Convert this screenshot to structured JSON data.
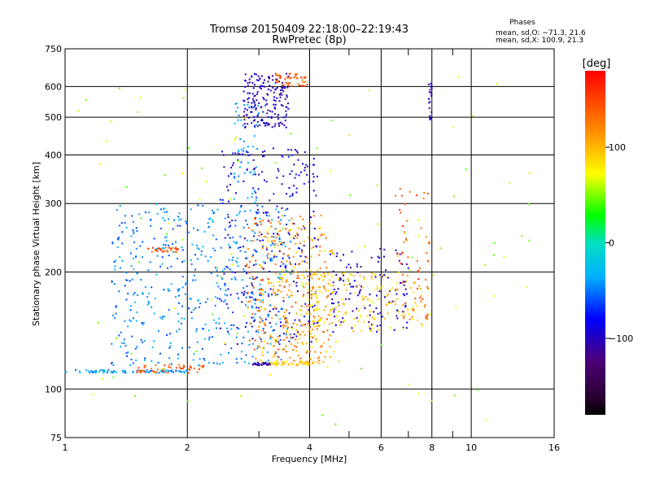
{
  "chart_data": {
    "type": "scatter",
    "title": "Tromsø 20150409 22:18:00–22:19:43",
    "subtitle": "RwPretec (8p)",
    "xlabel": "Frequency [MHz]",
    "ylabel": "Stationary phase Virtual Height [km]",
    "x_scale": "log",
    "y_scale": "log",
    "xlim": [
      1,
      16
    ],
    "ylim": [
      75,
      750
    ],
    "x_ticks": [
      1,
      2,
      4,
      6,
      8,
      10,
      16
    ],
    "x_tick_labels": [
      "1",
      "2",
      "4",
      "6",
      "8",
      "10",
      "16"
    ],
    "x_minor_ticks": [
      3,
      5,
      7,
      9
    ],
    "y_ticks": [
      75,
      100,
      200,
      300,
      400,
      500,
      600,
      750
    ],
    "y_tick_labels": [
      "75",
      "100",
      "200",
      "300",
      "400",
      "500",
      "600",
      "750"
    ],
    "grid": true,
    "info": {
      "heading": "Phases",
      "line1": "mean, sd,O: −71.3, 21.6",
      "line2": "mean, sd,X: 100.9, 21.3"
    },
    "colorbar": {
      "label": "[deg]",
      "range": [
        -180,
        180
      ],
      "ticks": [
        100,
        0,
        -100
      ],
      "tick_labels": [
        "100",
        "0",
        "−100"
      ],
      "colormap": "rainbow"
    },
    "point_groups": [
      {
        "label": "low E-layer trace O",
        "x_range": [
          1.0,
          2.0
        ],
        "h_range": [
          110,
          112
        ],
        "phase": -40,
        "count": 90
      },
      {
        "label": "low E-layer trace X",
        "x_range": [
          1.5,
          2.2
        ],
        "h_range": [
          110,
          116
        ],
        "phase": 140,
        "count": 50
      },
      {
        "label": "F1 O-mode cloud",
        "x_range": [
          1.3,
          3.6
        ],
        "h_range": [
          115,
          300
        ],
        "phase": -45,
        "count": 520
      },
      {
        "label": "F1 blue cloud",
        "x_range": [
          2.4,
          4.2
        ],
        "h_range": [
          130,
          420
        ],
        "phase": -90,
        "count": 260
      },
      {
        "label": "F1 X-mode cloud",
        "x_range": [
          2.8,
          4.5
        ],
        "h_range": [
          115,
          280
        ],
        "phase": 130,
        "count": 230
      },
      {
        "label": "F1 X-mode yellow",
        "x_range": [
          3.0,
          4.6
        ],
        "h_range": [
          115,
          260
        ],
        "phase": 95,
        "count": 180
      },
      {
        "label": "short orange trace",
        "x_range": [
          1.6,
          1.9
        ],
        "h_range": [
          225,
          232
        ],
        "phase": 145,
        "count": 30
      },
      {
        "label": "F2 O-mode top",
        "x_range": [
          2.75,
          3.55
        ],
        "h_range": [
          470,
          650
        ],
        "phase": -100,
        "count": 180
      },
      {
        "label": "F2 X-mode top",
        "x_range": [
          3.3,
          3.95
        ],
        "h_range": [
          600,
          650
        ],
        "phase": 140,
        "count": 50
      },
      {
        "label": "F2 cyan rise",
        "x_range": [
          2.6,
          3.0
        ],
        "h_range": [
          300,
          550
        ],
        "phase": -40,
        "count": 50
      },
      {
        "label": "E-region blue line",
        "x_range": [
          2.9,
          3.3
        ],
        "h_range": [
          115,
          117
        ],
        "phase": -110,
        "count": 35
      },
      {
        "label": "E-region yellow line",
        "x_range": [
          3.2,
          4.1
        ],
        "h_range": [
          115,
          118
        ],
        "phase": 90,
        "count": 40
      },
      {
        "label": "sporadic traces O",
        "x_range": [
          4.5,
          7.0
        ],
        "h_range": [
          140,
          230
        ],
        "phase": -100,
        "count": 120
      },
      {
        "label": "sporadic traces X",
        "x_range": [
          4.0,
          7.6
        ],
        "h_range": [
          140,
          200
        ],
        "phase": 90,
        "count": 150
      },
      {
        "label": "sporadic traces X orange",
        "x_range": [
          6.5,
          7.9
        ],
        "h_range": [
          150,
          330
        ],
        "phase": 140,
        "count": 60
      },
      {
        "label": "8 MHz column",
        "x_range": [
          7.85,
          8.0
        ],
        "h_range": [
          490,
          620
        ],
        "phase": -110,
        "count": 20
      },
      {
        "label": "scattered noise",
        "x_range": [
          1.0,
          14.5
        ],
        "h_range": [
          80,
          650
        ],
        "phase": 60,
        "count": 110
      }
    ]
  }
}
